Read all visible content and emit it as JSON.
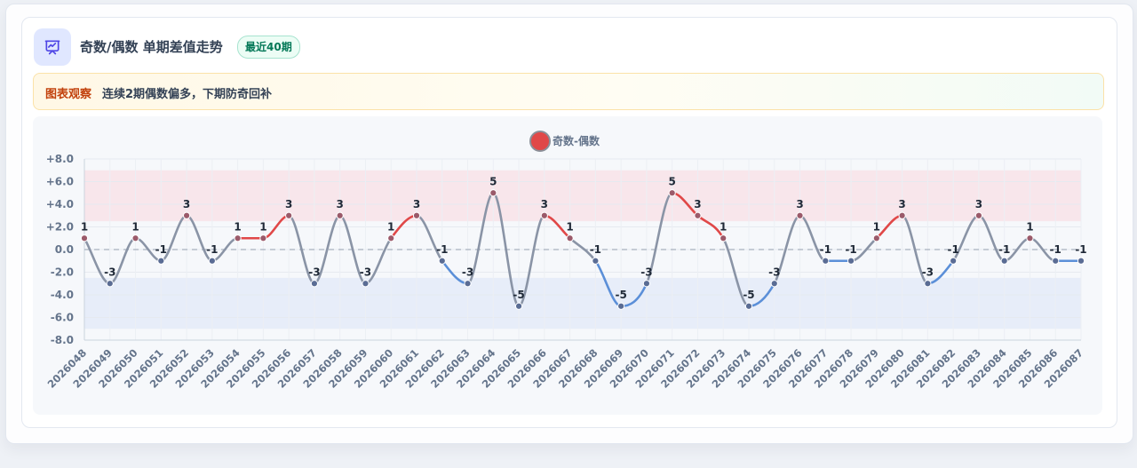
{
  "header": {
    "title": "奇数/偶数 单期差值走势",
    "badge": "最近40期",
    "icon": "presentation-chart-icon"
  },
  "observation": {
    "label": "图表观察",
    "text": "连续2期偶数偏多，下期防奇回补"
  },
  "colors": {
    "positive": "#e04848",
    "negative": "#5b8fd8",
    "neutral": "#8a94a6",
    "high_band": "#f8e3e8",
    "low_band": "#e4ebf8",
    "legend_marker": "#e04848"
  },
  "chart_data": {
    "type": "line",
    "legend": [
      "奇数-偶数"
    ],
    "legend_position": "top-center",
    "ylim": [
      -8,
      8
    ],
    "y_ticks": [
      "+8.0",
      "+6.0",
      "+4.0",
      "+2.0",
      "0.0",
      "-2.0",
      "-4.0",
      "-6.0",
      "-8.0"
    ],
    "bands": [
      {
        "from": 2.5,
        "to": 7,
        "kind": "high"
      },
      {
        "from": -7,
        "to": -2.5,
        "kind": "low"
      }
    ],
    "zero_line": true,
    "grid": true,
    "series": [
      {
        "name": "奇数-偶数",
        "values": [
          1,
          -3,
          1,
          -1,
          3,
          -1,
          1,
          1,
          3,
          -3,
          3,
          -3,
          1,
          3,
          -1,
          -3,
          5,
          -5,
          3,
          1,
          -1,
          -5,
          -3,
          5,
          3,
          1,
          -5,
          -3,
          3,
          -1,
          -1,
          1,
          3,
          -3,
          -1,
          3,
          -1,
          1,
          -1,
          -1
        ]
      }
    ],
    "categories": [
      "2026048",
      "2026049",
      "2026050",
      "2026051",
      "2026052",
      "2026053",
      "2026054",
      "2026055",
      "2026056",
      "2026057",
      "2026058",
      "2026059",
      "2026060",
      "2026061",
      "2026062",
      "2026063",
      "2026064",
      "2026065",
      "2026066",
      "2026067",
      "2026068",
      "2026069",
      "2026070",
      "2026071",
      "2026072",
      "2026073",
      "2026074",
      "2026075",
      "2026076",
      "2026077",
      "2026078",
      "2026079",
      "2026080",
      "2026081",
      "2026082",
      "2026083",
      "2026084",
      "2026085",
      "2026086",
      "2026087"
    ]
  }
}
